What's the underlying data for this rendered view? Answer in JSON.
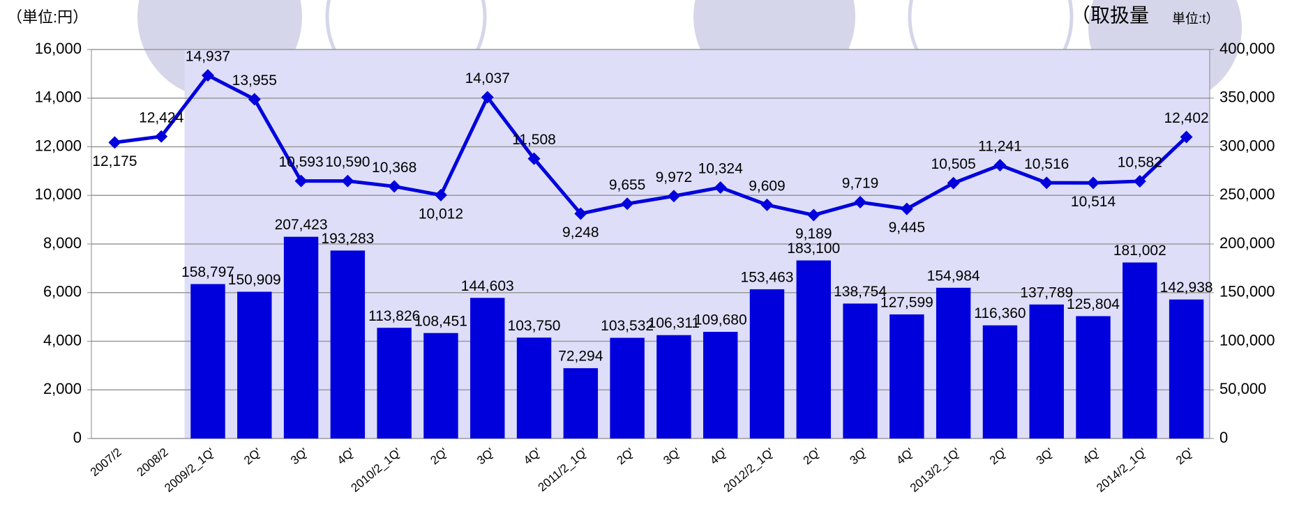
{
  "chart_data": {
    "type": "combo",
    "ylabel": "（単位:円）",
    "y2label": "（取扱量",
    "y2unit": "単位:t）",
    "categories": [
      "2007/2",
      "2008/2",
      "2009/2_1Q'",
      "2Q'",
      "3Q'",
      "4Q'",
      "2010/2_1Q'",
      "2Q'",
      "3Q'",
      "4Q'",
      "2011/2_1Q'",
      "2Q'",
      "3Q'",
      "4Q'",
      "2012/2_1Q'",
      "2Q'",
      "3Q'",
      "4Q'",
      "2013/2_1Q'",
      "2Q'",
      "3Q'",
      "4Q'",
      "2014/2_1Q'",
      "2Q'"
    ],
    "series": [
      {
        "type": "bar",
        "axis": "y2",
        "color": "#0000dd",
        "values": [
          null,
          null,
          158797,
          150909,
          207423,
          193283,
          113826,
          108451,
          144603,
          103750,
          72294,
          103532,
          106311,
          109680,
          153463,
          183100,
          138754,
          127599,
          154984,
          116360,
          137789,
          125804,
          181002,
          142938
        ],
        "value_labels": [
          null,
          null,
          "158,797",
          "150,909",
          "207,423",
          "193,283",
          "113,826",
          "108,451",
          "144,603",
          "103,750",
          "72,294",
          "103,532",
          "106,311",
          "109,680",
          "153,463",
          "183,100",
          "138,754",
          "127,599",
          "154,984",
          "116,360",
          "137,789",
          "125,804",
          "181,002",
          "142,938"
        ]
      },
      {
        "type": "line",
        "color": "#0000dd",
        "values": [
          12175,
          12424,
          14937,
          13955,
          10593,
          10590,
          10368,
          10012,
          14037,
          11508,
          9248,
          9655,
          9972,
          10324,
          9609,
          9189,
          9719,
          9445,
          10505,
          11241,
          10516,
          10514,
          10582,
          12402
        ],
        "value_labels": [
          "12,175",
          "12,424",
          "14,937",
          "13,955",
          "10,593",
          "10,590",
          "10,368",
          "10,012",
          "14,037",
          "11,508",
          "9,248",
          "9,655",
          "9,972",
          "10,324",
          "9,609",
          "9,189",
          "9,719",
          "9,445",
          "10,505",
          "11,241",
          "10,516",
          "10,514",
          "10,582",
          "12,402"
        ]
      }
    ],
    "ylim": [
      0,
      16000
    ],
    "yticks": [
      0,
      {
        "value": 2000,
        "label": "2,000"
      },
      {
        "value": 4000,
        "label": "4,000"
      },
      {
        "value": 6000,
        "label": "6,000"
      },
      {
        "value": 8000,
        "label": "8,000"
      },
      {
        "value": 10000,
        "label": "10,000"
      },
      {
        "value": 12000,
        "label": "12,000"
      },
      {
        "value": 14000,
        "label": "14,000"
      },
      {
        "value": 16000,
        "label": "16,000"
      }
    ],
    "y2lim": [
      0,
      400000
    ],
    "y2ticks": [
      0,
      {
        "value": 50000,
        "label": "50,000"
      },
      {
        "value": 100000,
        "label": "100,000"
      },
      {
        "value": 150000,
        "label": "150,000"
      },
      {
        "value": 200000,
        "label": "200,000"
      },
      {
        "value": 250000,
        "label": "250,000"
      },
      {
        "value": 300000,
        "label": "300,000"
      },
      {
        "value": 350000,
        "label": "350,000"
      },
      {
        "value": 400000,
        "label": "400,000"
      }
    ],
    "grid": true
  }
}
